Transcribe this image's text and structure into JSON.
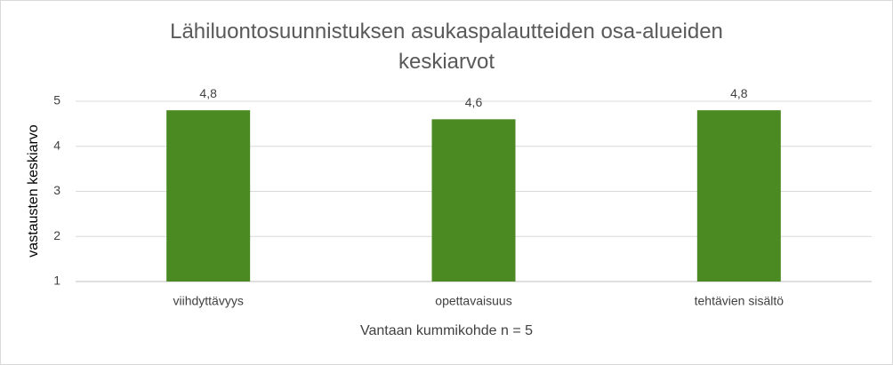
{
  "chart_data": {
    "type": "bar",
    "title": "Lähiluontosuunnistuksen asukaspalautteiden osa-alueiden keskiarvot",
    "x_label": "Vantaan kummikohde n = 5",
    "y_label": "vastausten  keskiarvo",
    "categories": [
      "viihdyttävyys",
      "opettavaisuus",
      "tehtävien sisältö"
    ],
    "values": [
      4.8,
      4.6,
      4.8
    ],
    "value_labels": [
      "4,8",
      "4,6",
      "4,8"
    ],
    "color": "#4b8a22",
    "ylim": [
      1,
      5
    ],
    "yticks": [
      1,
      2,
      3,
      4,
      5
    ],
    "grid": true
  }
}
